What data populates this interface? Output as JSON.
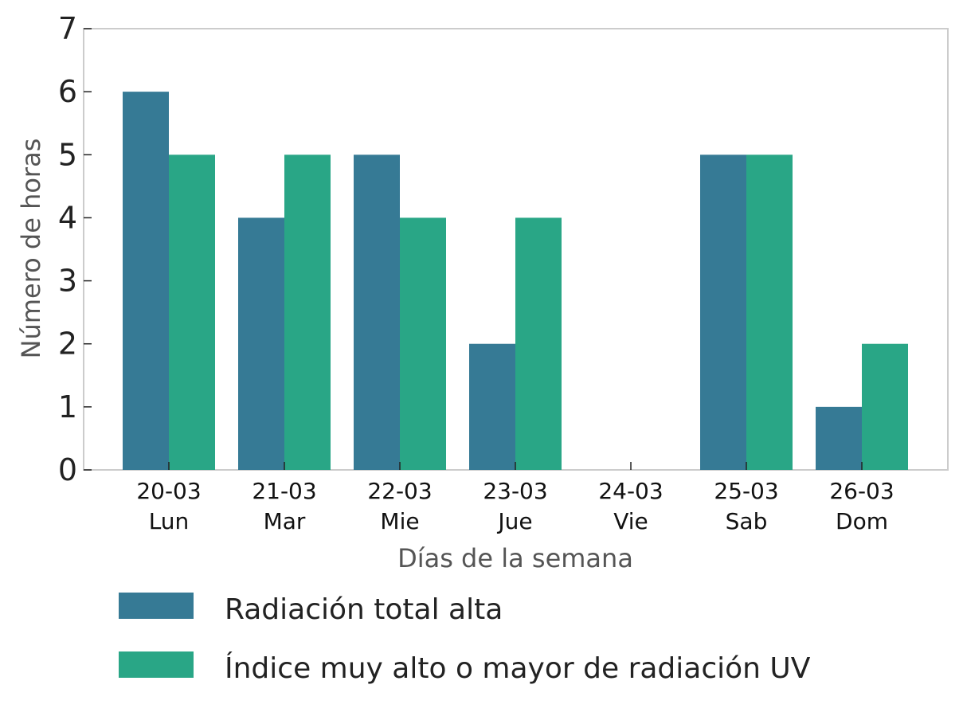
{
  "chart_data": {
    "type": "bar",
    "categories": [
      [
        "20-03",
        "Lun"
      ],
      [
        "21-03",
        "Mar"
      ],
      [
        "22-03",
        "Mie"
      ],
      [
        "23-03",
        "Jue"
      ],
      [
        "24-03",
        "Vie"
      ],
      [
        "25-03",
        "Sab"
      ],
      [
        "26-03",
        "Dom"
      ]
    ],
    "series": [
      {
        "name": "Radiación total alta",
        "values": [
          6,
          4,
          5,
          2,
          0,
          5,
          1
        ],
        "color": "#367a95"
      },
      {
        "name": "Índice muy alto o mayor de radiación UV",
        "values": [
          5,
          5,
          4,
          4,
          0,
          5,
          2
        ],
        "color": "#29a686"
      }
    ],
    "title": "",
    "xlabel": "Días de la semana",
    "ylabel": "Número de horas",
    "ylim": [
      0,
      7
    ],
    "yticks": [
      0,
      1,
      2,
      3,
      4,
      5,
      6,
      7
    ],
    "grid": false,
    "legend_position": "bottom"
  },
  "colors": {
    "frame": "#cccccc",
    "tick": "#222222"
  }
}
